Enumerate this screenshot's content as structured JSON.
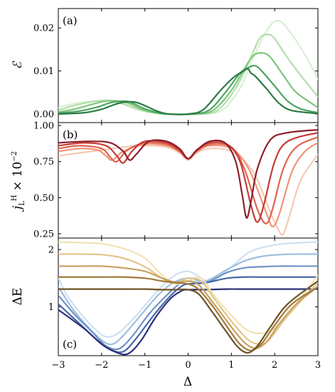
{
  "chart_data": [
    {
      "type": "line",
      "panel_tag": "(a)",
      "ylabel": "ℰ",
      "xlim": [
        -3,
        3
      ],
      "ylim": [
        -0.002,
        0.0245
      ],
      "yticks": [
        0.0,
        0.01,
        0.02
      ],
      "ytick_labels": [
        "0.00",
        "0.01",
        "0.02"
      ],
      "series": [
        {
          "color": "#d9efd3",
          "x": [
            -3,
            -2.6,
            -2.2,
            -1.9,
            -1.7,
            -1.4,
            -1.1,
            -0.8,
            -0.5,
            0.3,
            0.8,
            1.2,
            1.5,
            1.8,
            2.0,
            2.2,
            2.5,
            2.8,
            3.0
          ],
          "y": [
            0.0015,
            0.0025,
            0.003,
            0.0032,
            0.003,
            0.0022,
            0.001,
            0.0003,
            0,
            0,
            0.001,
            0.006,
            0.013,
            0.019,
            0.0215,
            0.021,
            0.017,
            0.012,
            0.008
          ]
        },
        {
          "color": "#b2deab",
          "x": [
            -3,
            -2.7,
            -2.3,
            -2.0,
            -1.8,
            -1.5,
            -1.2,
            -0.9,
            -0.5,
            0.3,
            0.7,
            1.1,
            1.4,
            1.65,
            1.85,
            2.0,
            2.3,
            2.6,
            3.0
          ],
          "y": [
            0.0008,
            0.0018,
            0.0027,
            0.0031,
            0.003,
            0.0023,
            0.0012,
            0.0004,
            0,
            0,
            0.001,
            0.006,
            0.012,
            0.0175,
            0.0185,
            0.0175,
            0.013,
            0.009,
            0.004
          ]
        },
        {
          "color": "#7fc47c",
          "x": [
            -3,
            -2.6,
            -2.2,
            -1.9,
            -1.6,
            -1.35,
            -1.1,
            -0.8,
            -0.5,
            0.2,
            0.6,
            1.0,
            1.3,
            1.5,
            1.7,
            1.9,
            2.2,
            2.5,
            3.0
          ],
          "y": [
            0.0004,
            0.0012,
            0.0023,
            0.003,
            0.003,
            0.0024,
            0.0012,
            0.0004,
            0,
            0,
            0.001,
            0.0055,
            0.0105,
            0.0135,
            0.0142,
            0.0132,
            0.009,
            0.005,
            0.0015
          ]
        },
        {
          "color": "#4ea463",
          "x": [
            -3,
            -2.5,
            -2.1,
            -1.8,
            -1.5,
            -1.3,
            -1.05,
            -0.75,
            -0.5,
            0.1,
            0.5,
            0.9,
            1.2,
            1.4,
            1.55,
            1.7,
            2.0,
            2.3,
            2.6,
            3.0
          ],
          "y": [
            0.0002,
            0.0007,
            0.0016,
            0.0026,
            0.003,
            0.0026,
            0.0014,
            0.0004,
            0,
            0,
            0.001,
            0.0055,
            0.0095,
            0.0108,
            0.0112,
            0.01,
            0.0065,
            0.003,
            0.0012,
            0.0003
          ]
        },
        {
          "color": "#2a7a45",
          "x": [
            -3,
            -2.4,
            -2.0,
            -1.7,
            -1.45,
            -1.2,
            -0.95,
            -0.7,
            -0.45,
            0.0,
            0.35,
            0.75,
            1.05,
            1.25,
            1.38,
            1.45,
            1.55,
            1.8,
            2.1,
            2.4,
            3.0
          ],
          "y": [
            0,
            0.0003,
            0.0011,
            0.0022,
            0.0028,
            0.0027,
            0.0017,
            0.0006,
            0,
            0,
            0.001,
            0.0055,
            0.0085,
            0.0098,
            0.0105,
            0.0095,
            0.0088,
            0.006,
            0.0025,
            0.0008,
            0.0001
          ]
        }
      ]
    },
    {
      "type": "line",
      "panel_tag": "(b)",
      "ylabel": "j_L^H × 10^-2",
      "xlim": [
        -3,
        3
      ],
      "ylim": [
        0.22,
        1.02
      ],
      "yticks": [
        0.25,
        0.5,
        0.75,
        1.0
      ],
      "ytick_labels": [
        "0.25",
        "0.50",
        "0.75",
        "1.00"
      ],
      "series": [
        {
          "color": "#f6c9b4",
          "x": [
            -3,
            -2.5,
            -2.0,
            -1.5,
            -1.0,
            -0.5,
            -0.2,
            0,
            0.2,
            0.5,
            1.0,
            1.5,
            1.9,
            2.1,
            2.2,
            2.35,
            2.6,
            3.0
          ],
          "y": [
            0.79,
            0.81,
            0.83,
            0.85,
            0.86,
            0.85,
            0.81,
            0.76,
            0.81,
            0.84,
            0.82,
            0.68,
            0.4,
            0.27,
            0.25,
            0.38,
            0.62,
            0.8
          ]
        },
        {
          "color": "#ef9478",
          "x": [
            -3,
            -2.5,
            -2.1,
            -1.9,
            -1.75,
            -1.5,
            -1.0,
            -0.5,
            -0.2,
            0,
            0.2,
            0.5,
            1.0,
            1.4,
            1.8,
            1.95,
            2.1,
            2.4,
            2.7,
            3.0
          ],
          "y": [
            0.82,
            0.84,
            0.83,
            0.79,
            0.76,
            0.82,
            0.87,
            0.86,
            0.82,
            0.77,
            0.82,
            0.86,
            0.84,
            0.7,
            0.4,
            0.3,
            0.38,
            0.68,
            0.82,
            0.88
          ]
        },
        {
          "color": "#e06450",
          "x": [
            -3,
            -2.5,
            -2.0,
            -1.8,
            -1.65,
            -1.4,
            -1.0,
            -0.5,
            -0.2,
            0,
            0.2,
            0.5,
            1.0,
            1.3,
            1.6,
            1.8,
            1.95,
            2.2,
            2.5,
            3.0
          ],
          "y": [
            0.84,
            0.86,
            0.84,
            0.78,
            0.75,
            0.83,
            0.88,
            0.87,
            0.82,
            0.77,
            0.82,
            0.87,
            0.85,
            0.7,
            0.42,
            0.32,
            0.42,
            0.7,
            0.85,
            0.92
          ]
        },
        {
          "color": "#c33d38",
          "x": [
            -3,
            -2.4,
            -1.9,
            -1.65,
            -1.5,
            -1.3,
            -1.0,
            -0.5,
            -0.2,
            0,
            0.2,
            0.5,
            0.9,
            1.2,
            1.45,
            1.6,
            1.75,
            2.0,
            2.3,
            3.0
          ],
          "y": [
            0.86,
            0.88,
            0.86,
            0.79,
            0.74,
            0.82,
            0.89,
            0.88,
            0.83,
            0.77,
            0.83,
            0.88,
            0.87,
            0.75,
            0.45,
            0.33,
            0.45,
            0.75,
            0.89,
            0.95
          ]
        },
        {
          "color": "#8e1f2c",
          "x": [
            -3,
            -2.3,
            -1.8,
            -1.5,
            -1.35,
            -1.2,
            -0.9,
            -0.5,
            -0.2,
            0,
            0.2,
            0.5,
            0.85,
            1.1,
            1.25,
            1.35,
            1.45,
            1.6,
            1.9,
            2.3,
            3.0
          ],
          "y": [
            0.88,
            0.89,
            0.88,
            0.82,
            0.76,
            0.8,
            0.89,
            0.89,
            0.84,
            0.77,
            0.83,
            0.89,
            0.88,
            0.75,
            0.52,
            0.36,
            0.47,
            0.7,
            0.9,
            0.95,
            0.97
          ]
        }
      ]
    },
    {
      "type": "line",
      "panel_tag": "(c)",
      "ylabel": "ΔE",
      "xlabel": "Δ",
      "xlim": [
        -3,
        3
      ],
      "ylim": [
        0.15,
        2.2
      ],
      "yticks": [
        1,
        2
      ],
      "ytick_labels": [
        "1",
        "2"
      ],
      "xticks": [
        -3,
        -2,
        -1,
        0,
        1,
        2,
        3
      ],
      "xtick_labels": [
        "−3",
        "−2",
        "−1",
        "0",
        "1",
        "2",
        "3"
      ],
      "series": [
        {
          "color": "#cfe0f2",
          "x": [
            -3,
            -2.8,
            -2.5,
            -2.2,
            -1.9,
            -1.6,
            -1.2,
            -0.8,
            -0.4,
            0,
            0.5,
            1.0,
            1.4,
            1.8,
            2.2,
            2.6,
            3.0
          ],
          "y": [
            1.5,
            1.2,
            0.9,
            0.65,
            0.48,
            0.55,
            0.85,
            1.2,
            1.5,
            1.62,
            1.45,
            1.7,
            1.95,
            2.05,
            2.1,
            2.12,
            2.13
          ]
        },
        {
          "color": "#9fbedf",
          "x": [
            -3,
            -2.7,
            -2.4,
            -2.0,
            -1.75,
            -1.5,
            -1.1,
            -0.7,
            -0.35,
            0,
            0.4,
            0.9,
            1.3,
            1.7,
            2.1,
            2.5,
            3.0
          ],
          "y": [
            1.35,
            1.0,
            0.72,
            0.42,
            0.35,
            0.5,
            0.85,
            1.2,
            1.42,
            1.5,
            1.45,
            1.65,
            1.8,
            1.88,
            1.91,
            1.92,
            1.92
          ]
        },
        {
          "color": "#6e93c8",
          "x": [
            -3,
            -2.6,
            -2.2,
            -1.9,
            -1.6,
            -1.3,
            -0.9,
            -0.5,
            -0.2,
            0,
            0.4,
            0.9,
            1.3,
            1.7,
            2.1,
            2.5,
            3.0
          ],
          "y": [
            1.2,
            0.85,
            0.55,
            0.32,
            0.27,
            0.48,
            0.88,
            1.2,
            1.4,
            1.45,
            1.42,
            1.6,
            1.68,
            1.7,
            1.71,
            1.71,
            1.71
          ]
        },
        {
          "color": "#4468aa",
          "x": [
            -3,
            -2.5,
            -2.1,
            -1.8,
            -1.5,
            -1.2,
            -0.8,
            -0.4,
            -0.15,
            0,
            0.4,
            0.9,
            1.3,
            1.7,
            2.1,
            2.5,
            3.0
          ],
          "y": [
            1.05,
            0.7,
            0.42,
            0.26,
            0.22,
            0.45,
            0.85,
            1.2,
            1.36,
            1.4,
            1.42,
            1.5,
            1.52,
            1.52,
            1.52,
            1.52,
            1.52
          ]
        },
        {
          "color": "#2e2f78",
          "x": [
            -3,
            -2.4,
            -2.0,
            -1.7,
            -1.4,
            -1.1,
            -0.75,
            -0.4,
            -0.15,
            0,
            0.4,
            0.9,
            1.3,
            1.7,
            2.1,
            2.5,
            3.0
          ],
          "y": [
            0.95,
            0.62,
            0.35,
            0.22,
            0.18,
            0.4,
            0.82,
            1.15,
            1.28,
            1.3,
            1.3,
            1.31,
            1.31,
            1.31,
            1.31,
            1.31,
            1.31
          ]
        },
        {
          "color": "#f2e2b5",
          "x": [
            -3,
            -2.5,
            -2.0,
            -1.5,
            -1.0,
            -0.6,
            -0.3,
            0,
            0.3,
            0.6,
            1.0,
            1.4,
            1.8,
            2.1,
            2.4,
            2.7,
            3.0
          ],
          "y": [
            2.13,
            2.12,
            2.1,
            2.02,
            1.85,
            1.55,
            1.4,
            1.45,
            1.5,
            1.2,
            0.85,
            0.58,
            0.55,
            0.7,
            0.95,
            1.25,
            1.55
          ]
        },
        {
          "color": "#e2c589",
          "x": [
            -3,
            -2.5,
            -2.0,
            -1.5,
            -1.0,
            -0.6,
            -0.3,
            0,
            0.3,
            0.6,
            1.0,
            1.4,
            1.7,
            1.9,
            2.2,
            2.6,
            3.0
          ],
          "y": [
            1.92,
            1.92,
            1.91,
            1.85,
            1.7,
            1.5,
            1.42,
            1.5,
            1.45,
            1.15,
            0.75,
            0.42,
            0.35,
            0.45,
            0.75,
            1.1,
            1.42
          ]
        },
        {
          "color": "#c9a160",
          "x": [
            -3,
            -2.5,
            -2.0,
            -1.5,
            -1.0,
            -0.6,
            -0.3,
            0,
            0.25,
            0.6,
            1.0,
            1.3,
            1.55,
            1.8,
            2.1,
            2.5,
            3.0
          ],
          "y": [
            1.71,
            1.71,
            1.71,
            1.68,
            1.62,
            1.5,
            1.43,
            1.45,
            1.38,
            1.05,
            0.65,
            0.38,
            0.28,
            0.38,
            0.7,
            1.05,
            1.35
          ]
        },
        {
          "color": "#a07a3c",
          "x": [
            -3,
            -2.5,
            -2.0,
            -1.5,
            -1.0,
            -0.6,
            -0.3,
            0,
            0.25,
            0.6,
            0.95,
            1.2,
            1.45,
            1.7,
            2.0,
            2.4,
            3.0
          ],
          "y": [
            1.52,
            1.52,
            1.52,
            1.52,
            1.5,
            1.45,
            1.42,
            1.4,
            1.3,
            0.98,
            0.6,
            0.35,
            0.24,
            0.36,
            0.68,
            1.05,
            1.35
          ]
        },
        {
          "color": "#6e5225",
          "x": [
            -3,
            -2.5,
            -2.0,
            -1.5,
            -1.0,
            -0.6,
            -0.3,
            0,
            0.25,
            0.55,
            0.9,
            1.15,
            1.38,
            1.6,
            1.9,
            2.3,
            3.0
          ],
          "y": [
            1.31,
            1.31,
            1.31,
            1.31,
            1.31,
            1.3,
            1.3,
            1.3,
            1.22,
            0.92,
            0.55,
            0.3,
            0.2,
            0.32,
            0.65,
            1.05,
            1.45
          ]
        }
      ]
    }
  ]
}
